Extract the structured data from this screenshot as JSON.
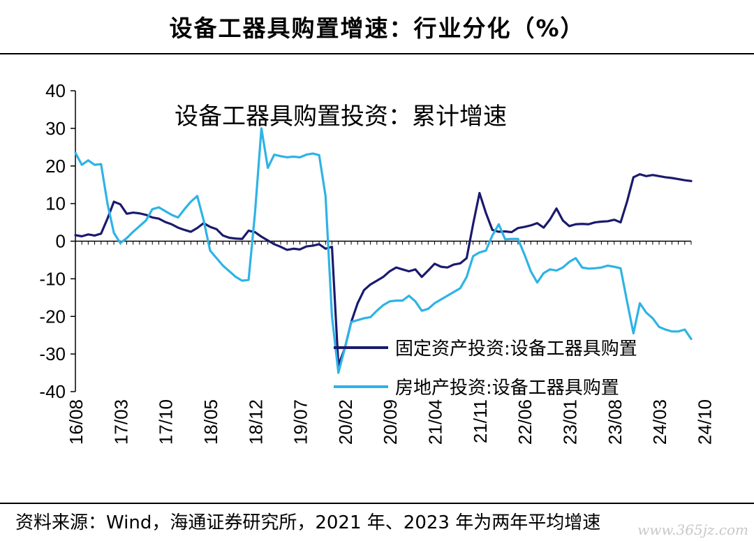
{
  "page": {
    "title": "设备工器具购置增速：行业分化（%）",
    "source": "资料来源：Wind，海通证券研究所，2021 年、2023 年为两年平均增速",
    "watermark": "www.365jz.com"
  },
  "chart_data": {
    "type": "line",
    "title": "设备工器具购置投资：累计增速",
    "xlabel": "",
    "ylabel": "",
    "ylim": [
      -40,
      40
    ],
    "yticks": [
      40,
      30,
      20,
      10,
      0,
      -10,
      -20,
      -30,
      -40
    ],
    "x_tick_labels": [
      "16/08",
      "17/03",
      "17/10",
      "18/05",
      "18/12",
      "19/07",
      "20/02",
      "20/09",
      "21/04",
      "21/11",
      "22/06",
      "23/01",
      "23/08",
      "24/03",
      "24/10"
    ],
    "x_start": "2016-08",
    "legend_position": "bottom-right",
    "series": [
      {
        "name": "固定资产投资:设备工器具购置",
        "color": "#1a1a6e",
        "values": [
          1.6,
          1.3,
          1.8,
          1.5,
          2.0,
          6.0,
          10.5,
          9.8,
          7.3,
          7.6,
          7.4,
          7.0,
          6.3,
          6.0,
          5.1,
          4.5,
          3.6,
          3.0,
          2.5,
          3.5,
          4.8,
          3.8,
          3.2,
          1.5,
          0.9,
          0.7,
          0.6,
          2.8,
          2.4,
          1.2,
          0.2,
          -0.8,
          -1.5,
          -2.3,
          -2.0,
          -2.2,
          -1.4,
          -1.2,
          -0.8,
          -2.0,
          -1.5,
          -33.0,
          -28.5,
          -21.5,
          -16.5,
          -13.0,
          -11.5,
          -10.5,
          -9.5,
          -8.0,
          -7.0,
          -7.5,
          -8.0,
          -7.5,
          -9.5,
          -7.8,
          -6.0,
          -6.8,
          -7.0,
          -6.2,
          -5.9,
          -4.5,
          4.5,
          12.8,
          7.5,
          3.0,
          2.5,
          2.6,
          2.4,
          3.5,
          3.8,
          4.2,
          4.8,
          3.6,
          5.8,
          8.7,
          5.5,
          4.0,
          4.5,
          4.6,
          4.5,
          5.0,
          5.2,
          5.3,
          5.7,
          5.0,
          10.5,
          17.0,
          17.8,
          17.3,
          17.6,
          17.3,
          17.0,
          16.8,
          16.5,
          16.2,
          16.0
        ],
        "note": ""
      },
      {
        "name": "房地产投资:设备工器具购置",
        "color": "#2eb3e6",
        "values": [
          23.5,
          20.3,
          21.5,
          20.3,
          20.5,
          10.0,
          2.2,
          -0.5,
          0.8,
          2.5,
          4.0,
          5.5,
          8.5,
          9.0,
          8.0,
          7.0,
          6.3,
          8.5,
          10.5,
          12.0,
          5.5,
          -2.5,
          -4.5,
          -6.5,
          -8.0,
          -9.5,
          -10.5,
          -10.3,
          7.5,
          30.0,
          19.5,
          23.0,
          22.6,
          22.3,
          22.5,
          22.3,
          23.0,
          23.3,
          22.9,
          12.0,
          -20.0,
          -35.0,
          -28.5,
          -21.5,
          -21.0,
          -20.5,
          -20.2,
          -18.5,
          -17.0,
          -16.0,
          -15.8,
          -15.8,
          -14.5,
          -16.0,
          -18.5,
          -18.0,
          -16.5,
          -15.5,
          -14.5,
          -13.5,
          -12.5,
          -9.5,
          -4.0,
          -3.0,
          -2.5,
          1.5,
          4.5,
          0.5,
          0.6,
          0.6,
          -3.5,
          -8.0,
          -11.0,
          -8.5,
          -7.5,
          -7.8,
          -7.0,
          -5.5,
          -4.5,
          -7.0,
          -7.3,
          -7.2,
          -7.0,
          -6.5,
          -6.8,
          -7.2,
          -16.0,
          -24.5,
          -16.5,
          -19.0,
          -20.5,
          -22.8,
          -23.5,
          -24.0,
          -24.0,
          -23.5,
          -26.0
        ]
      }
    ]
  }
}
